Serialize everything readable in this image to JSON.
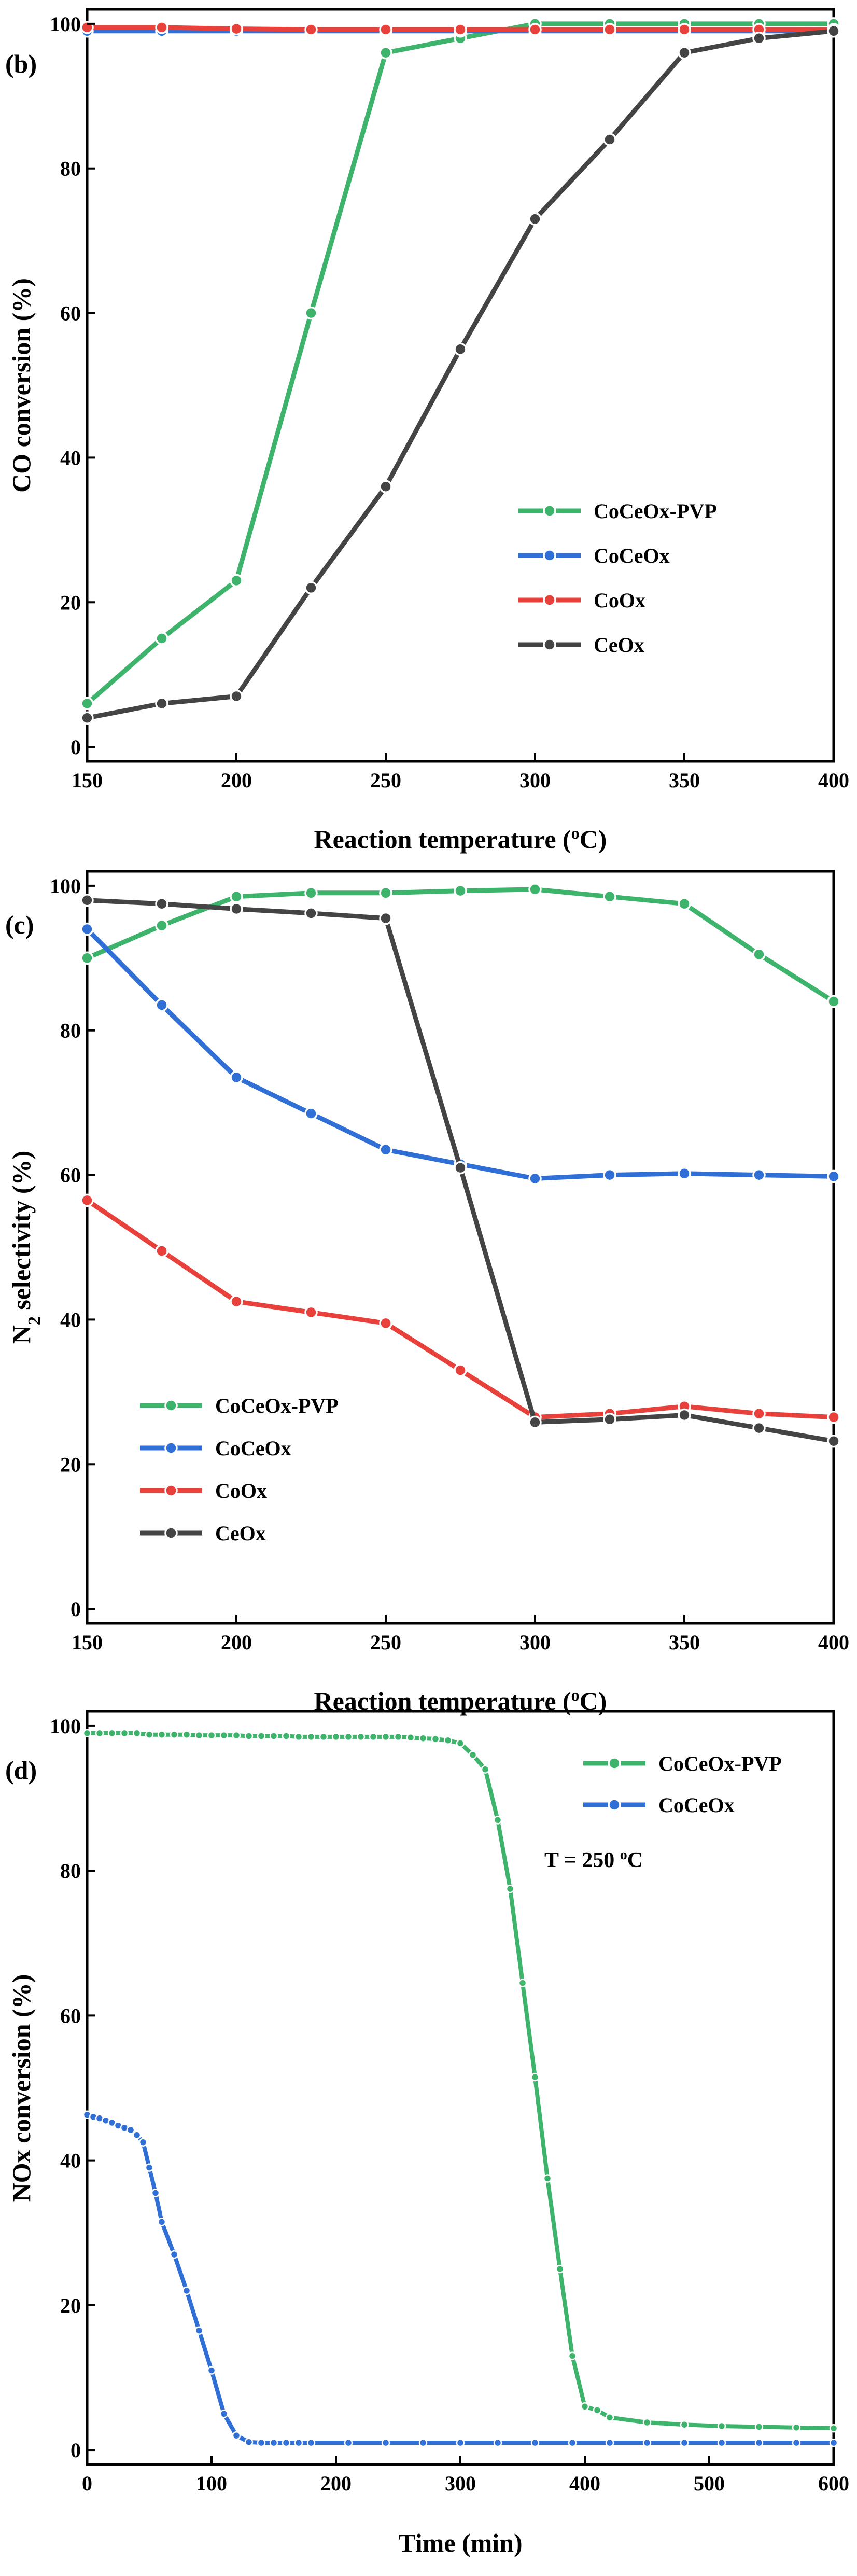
{
  "chart_data": [
    {
      "type": "line",
      "panel_label": "(b)",
      "xlabel": "Reaction temperature (",
      "xlabel_sup": "o",
      "xlabel_end": "C)",
      "ylabel": "CO conversion (%)",
      "xlim": [
        150,
        400
      ],
      "ylim": [
        -2,
        102
      ],
      "xticks": [
        150,
        200,
        250,
        300,
        350,
        400
      ],
      "yticks": [
        0,
        20,
        40,
        60,
        80,
        100
      ],
      "legend_position": "center-right",
      "series": [
        {
          "name": "CoCeOx-PVP",
          "color": "#3db36b",
          "x": [
            150,
            175,
            200,
            225,
            250,
            275,
            300,
            325,
            350,
            375,
            400
          ],
          "y": [
            6,
            15,
            23,
            60,
            96,
            98,
            100,
            100,
            100,
            100,
            100
          ]
        },
        {
          "name": "CoCeOx",
          "color": "#2f6fd6",
          "x": [
            150,
            175,
            200,
            225,
            250,
            275,
            300,
            325,
            350,
            375,
            400
          ],
          "y": [
            99,
            99,
            99,
            99,
            99,
            99,
            99,
            99,
            99,
            99,
            99
          ]
        },
        {
          "name": "CoOx",
          "color": "#e8403a",
          "x": [
            150,
            175,
            200,
            225,
            250,
            275,
            300,
            325,
            350,
            375,
            400
          ],
          "y": [
            99.5,
            99.5,
            99.3,
            99.2,
            99.2,
            99.2,
            99.2,
            99.2,
            99.2,
            99.2,
            99.2
          ]
        },
        {
          "name": "CeOx",
          "color": "#444444",
          "x": [
            150,
            175,
            200,
            225,
            250,
            275,
            300,
            325,
            350,
            375,
            400
          ],
          "y": [
            4,
            6,
            7,
            22,
            36,
            55,
            73,
            84,
            96,
            98,
            99
          ]
        }
      ]
    },
    {
      "type": "line",
      "panel_label": "(c)",
      "xlabel": "Reaction temperature (",
      "xlabel_sup": "o",
      "xlabel_end": "C)",
      "ylabel": "N",
      "ylabel_sub": "2",
      "ylabel_end": " selectivity (%)",
      "xlim": [
        150,
        400
      ],
      "ylim": [
        -2,
        102
      ],
      "xticks": [
        150,
        200,
        250,
        300,
        350,
        400
      ],
      "yticks": [
        0,
        20,
        40,
        60,
        80,
        100
      ],
      "legend_position": "bottom-left",
      "series": [
        {
          "name": "CoCeOx-PVP",
          "color": "#3db36b",
          "x": [
            150,
            175,
            200,
            225,
            250,
            275,
            300,
            325,
            350,
            375,
            400
          ],
          "y": [
            90,
            94.5,
            98.5,
            99,
            99,
            99.3,
            99.5,
            98.5,
            97.5,
            90.5,
            84
          ]
        },
        {
          "name": "CoCeOx",
          "color": "#2f6fd6",
          "x": [
            150,
            175,
            200,
            225,
            250,
            275,
            300,
            325,
            350,
            375,
            400
          ],
          "y": [
            94,
            83.5,
            73.5,
            68.5,
            63.5,
            61.5,
            59.5,
            60,
            60.2,
            60,
            59.8
          ]
        },
        {
          "name": "CoOx",
          "color": "#e8403a",
          "x": [
            150,
            175,
            200,
            225,
            250,
            275,
            300,
            325,
            350,
            375,
            400
          ],
          "y": [
            56.5,
            49.5,
            42.5,
            41,
            39.5,
            33,
            26.5,
            27,
            28,
            27,
            26.5
          ]
        },
        {
          "name": "CeOx",
          "color": "#444444",
          "x": [
            150,
            175,
            200,
            225,
            250,
            275,
            300,
            325,
            350,
            375,
            400
          ],
          "y": [
            98,
            97.5,
            96.8,
            96.2,
            95.5,
            61,
            25.8,
            26.2,
            26.8,
            25,
            23.2
          ]
        }
      ]
    },
    {
      "type": "line",
      "panel_label": "(d)",
      "xlabel": "Time (min)",
      "ylabel": "NOx conversion (%)",
      "note": "T = 250 ",
      "note_sup": "o",
      "note_end": "C",
      "xlim": [
        0,
        600
      ],
      "ylim": [
        -2,
        102
      ],
      "xticks": [
        0,
        100,
        200,
        300,
        400,
        500,
        600
      ],
      "yticks": [
        0,
        20,
        40,
        60,
        80,
        100
      ],
      "legend_position": "top-right",
      "series": [
        {
          "name": "CoCeOx-PVP",
          "color": "#3db36b",
          "x": [
            0,
            10,
            20,
            30,
            40,
            50,
            60,
            70,
            80,
            90,
            100,
            110,
            120,
            130,
            140,
            150,
            160,
            170,
            180,
            190,
            200,
            210,
            220,
            230,
            240,
            250,
            260,
            270,
            280,
            290,
            300,
            310,
            320,
            330,
            340,
            350,
            360,
            370,
            380,
            390,
            400,
            410,
            420,
            450,
            480,
            510,
            540,
            570,
            600
          ],
          "y": [
            99,
            99,
            99,
            99,
            99,
            98.8,
            98.8,
            98.8,
            98.8,
            98.7,
            98.7,
            98.7,
            98.7,
            98.6,
            98.6,
            98.6,
            98.6,
            98.5,
            98.5,
            98.5,
            98.5,
            98.5,
            98.5,
            98.5,
            98.5,
            98.5,
            98.4,
            98.3,
            98.2,
            98,
            97.6,
            96,
            94,
            87,
            77.5,
            64.5,
            51.5,
            37.5,
            25,
            13,
            6,
            5.5,
            4.5,
            3.8,
            3.5,
            3.3,
            3.2,
            3.1,
            3
          ]
        },
        {
          "name": "CoCeOx",
          "color": "#2f6fd6",
          "x": [
            0,
            5,
            10,
            15,
            20,
            25,
            30,
            35,
            40,
            45,
            50,
            55,
            60,
            70,
            80,
            90,
            100,
            110,
            120,
            130,
            140,
            150,
            160,
            170,
            180,
            210,
            240,
            270,
            300,
            330,
            360,
            390,
            420,
            450,
            480,
            510,
            540,
            570,
            600
          ],
          "y": [
            46.3,
            46,
            45.8,
            45.5,
            45.2,
            44.8,
            44.5,
            44.2,
            43.5,
            42.5,
            39,
            35.5,
            31.5,
            27,
            22,
            16.5,
            11,
            5,
            2,
            1.1,
            1,
            1,
            1,
            1,
            1,
            1,
            1,
            1,
            1,
            1,
            1,
            1,
            1,
            1,
            1,
            1,
            1,
            1,
            1
          ]
        }
      ]
    }
  ]
}
